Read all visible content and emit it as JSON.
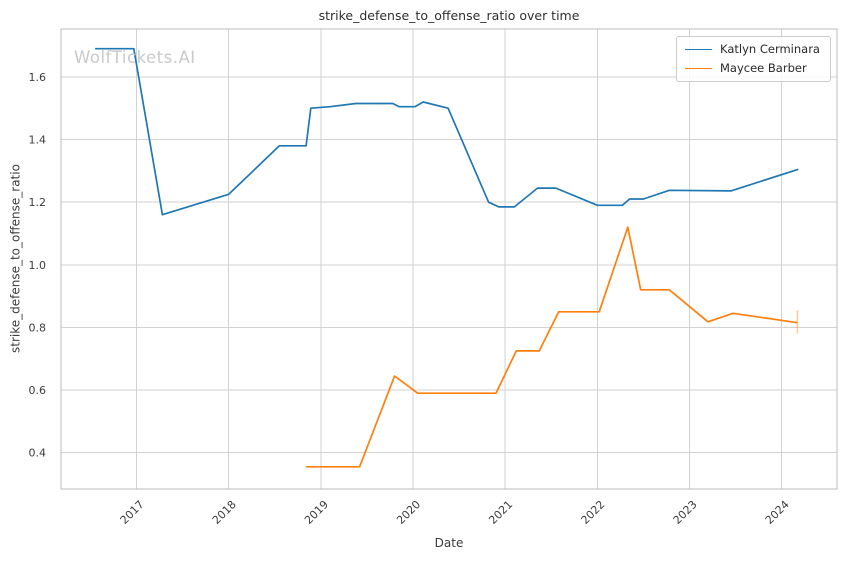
{
  "chart_data": {
    "type": "line",
    "title": "strike_defense_to_offense_ratio over time",
    "xlabel": "Date",
    "ylabel": "strike_defense_to_offense_ratio",
    "watermark": "WolfTickets.AI",
    "grid": true,
    "legend_position": "upper right",
    "xlim": [
      2016.18,
      2024.6
    ],
    "ylim": [
      0.284,
      1.753
    ],
    "x_ticks": [
      "2017",
      "2018",
      "2019",
      "2020",
      "2021",
      "2022",
      "2023",
      "2024"
    ],
    "y_ticks": [
      "0.4",
      "0.6",
      "0.8",
      "1.0",
      "1.2",
      "1.4",
      "1.6"
    ],
    "colors": {
      "grid": "#d2d2d2",
      "spine": "#bdbdbd"
    },
    "series": [
      {
        "name": "Katlyn Cerminara",
        "color": "#1f77b4",
        "points": [
          [
            2016.55,
            1.69
          ],
          [
            2016.97,
            1.69
          ],
          [
            2017.28,
            1.16
          ],
          [
            2018.0,
            1.225
          ],
          [
            2018.55,
            1.38
          ],
          [
            2018.84,
            1.38
          ],
          [
            2018.89,
            1.5
          ],
          [
            2019.1,
            1.505
          ],
          [
            2019.38,
            1.515
          ],
          [
            2019.78,
            1.515
          ],
          [
            2019.85,
            1.505
          ],
          [
            2020.02,
            1.505
          ],
          [
            2020.11,
            1.52
          ],
          [
            2020.38,
            1.5
          ],
          [
            2020.82,
            1.2
          ],
          [
            2020.93,
            1.185
          ],
          [
            2021.1,
            1.185
          ],
          [
            2021.35,
            1.245
          ],
          [
            2021.55,
            1.245
          ],
          [
            2022.0,
            1.19
          ],
          [
            2022.27,
            1.19
          ],
          [
            2022.35,
            1.21
          ],
          [
            2022.5,
            1.21
          ],
          [
            2022.78,
            1.238
          ],
          [
            2023.45,
            1.236
          ],
          [
            2024.18,
            1.305
          ]
        ]
      },
      {
        "name": "Maycee Barber",
        "color": "#ff7f0e",
        "points": [
          [
            2018.84,
            0.355
          ],
          [
            2019.42,
            0.355
          ],
          [
            2019.8,
            0.645
          ],
          [
            2020.05,
            0.59
          ],
          [
            2020.9,
            0.59
          ],
          [
            2021.12,
            0.725
          ],
          [
            2021.37,
            0.725
          ],
          [
            2021.58,
            0.85
          ],
          [
            2022.02,
            0.85
          ],
          [
            2022.33,
            1.12
          ],
          [
            2022.47,
            0.92
          ],
          [
            2022.78,
            0.92
          ],
          [
            2023.2,
            0.818
          ],
          [
            2023.47,
            0.845
          ],
          [
            2024.17,
            0.815
          ]
        ],
        "end_whisker": {
          "x": 2024.17,
          "value_low": 0.78,
          "value_high": 0.855
        }
      }
    ]
  }
}
